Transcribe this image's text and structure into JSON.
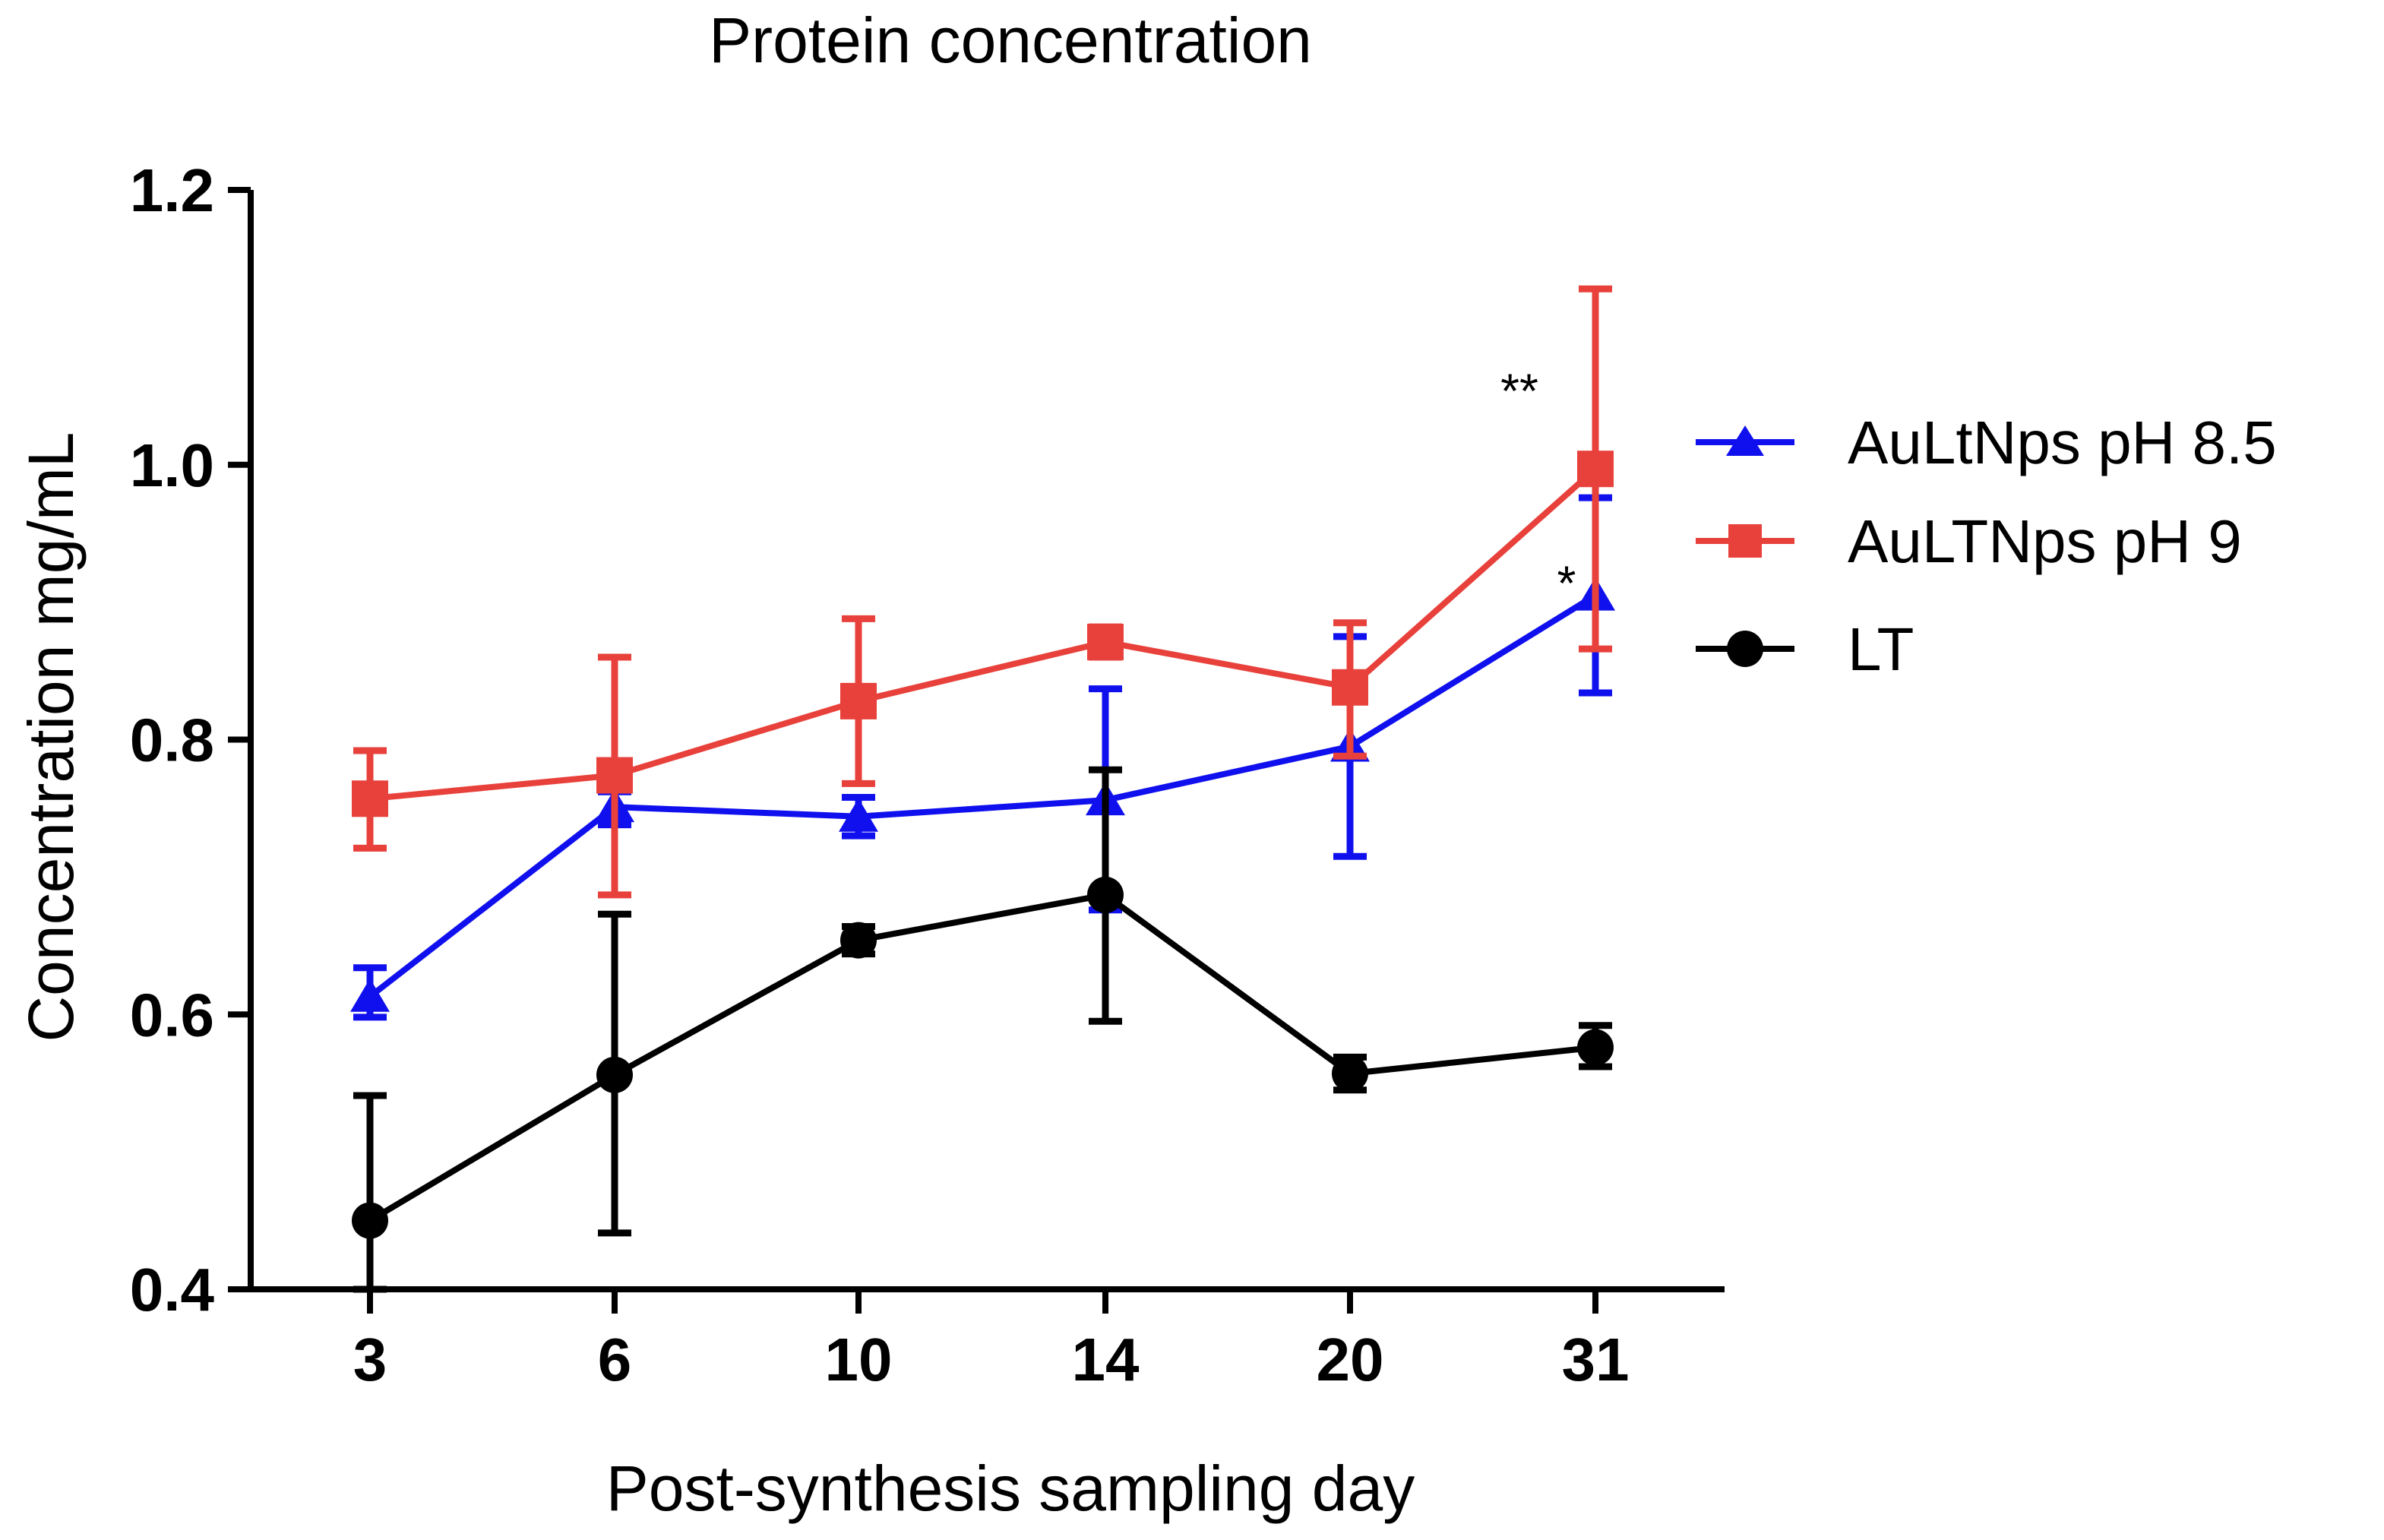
{
  "chart_data": {
    "type": "line",
    "title": "Protein concentration",
    "xlabel": "Post-synthesis sampling day",
    "ylabel": "Concentration mg/mL",
    "categories": [
      "3",
      "6",
      "10",
      "14",
      "20",
      "31"
    ],
    "ylim": [
      0.4,
      1.2
    ],
    "yticks": [
      0.4,
      0.6,
      0.8,
      1.0,
      1.2
    ],
    "ytick_labels": [
      "0.4",
      "0.6",
      "0.8",
      "1.0",
      "1.2"
    ],
    "grid": false,
    "legend_position": "right",
    "series": [
      {
        "name": "AuLtNps pH 8.5",
        "color": "#1010ee",
        "marker": "triangle",
        "values": [
          0.613,
          0.751,
          0.744,
          0.756,
          0.795,
          0.905
        ],
        "err_low": [
          0.598,
          0.738,
          0.73,
          0.676,
          0.715,
          0.834
        ],
        "err_high": [
          0.634,
          0.762,
          0.758,
          0.837,
          0.875,
          0.976
        ]
      },
      {
        "name": "AuLTNps pH 9",
        "color": "#e8413b",
        "marker": "square",
        "values": [
          0.757,
          0.774,
          0.828,
          0.871,
          0.838,
          0.997
        ],
        "err_low": [
          0.721,
          0.687,
          0.768,
          0.86,
          0.788,
          0.866
        ],
        "err_high": [
          0.792,
          0.86,
          0.888,
          0.882,
          0.885,
          1.128
        ]
      },
      {
        "name": "LT",
        "color": "#000000",
        "marker": "circle",
        "values": [
          0.45,
          0.556,
          0.654,
          0.687,
          0.557,
          0.576
        ],
        "err_low": [
          0.4,
          0.441,
          0.644,
          0.595,
          0.545,
          0.562
        ],
        "err_high": [
          0.541,
          0.673,
          0.664,
          0.778,
          0.569,
          0.592
        ]
      }
    ],
    "annotations": [
      {
        "text": "**",
        "category": "31",
        "y": 1.055
      },
      {
        "text": "*",
        "category": "31",
        "y": 0.915
      }
    ]
  }
}
